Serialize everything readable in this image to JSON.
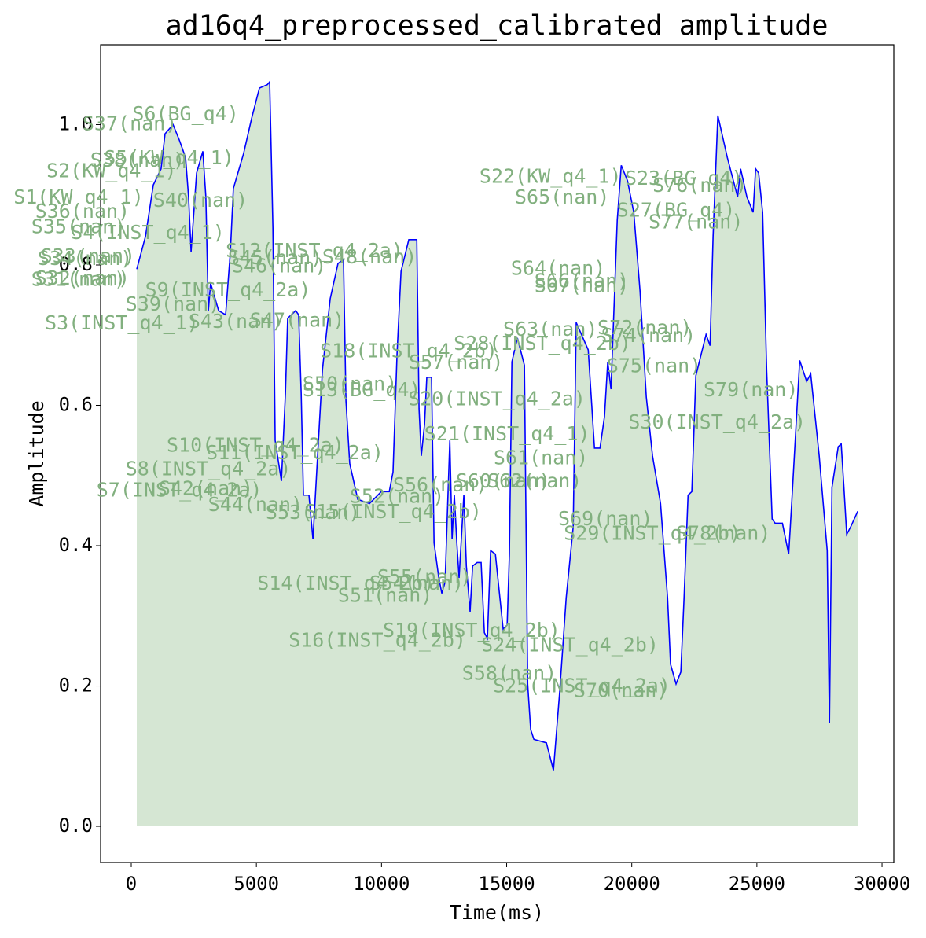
{
  "chart_data": {
    "type": "line",
    "title": "ad16q4_preprocessed_calibrated amplitude",
    "xlabel": "Time(ms)",
    "ylabel": "Amplitude",
    "xlim": [
      -1225,
      30470
    ],
    "ylim": [
      -0.0515,
      1.1137
    ],
    "xticks": [
      0,
      5000,
      10000,
      15000,
      20000,
      25000,
      30000
    ],
    "yticks": [
      {
        "value": 0,
        "label": "0.0"
      },
      {
        "value": 0.2,
        "label": "0.2"
      },
      {
        "value": 0.4,
        "label": "0.4"
      },
      {
        "value": 0.6,
        "label": "0.6"
      },
      {
        "value": 0.8,
        "label": "0.8"
      },
      {
        "value": 1,
        "label": "1.0"
      }
    ],
    "color": "#0000ff",
    "fill_color": "#d5e6d3",
    "x": [
      220,
      570,
      880,
      1190,
      1350,
      1670,
      1920,
      2170,
      2290,
      2390,
      2610,
      2860,
      2980,
      3080,
      3170,
      3490,
      3770,
      3960,
      4080,
      4490,
      4810,
      5120,
      5440,
      5530,
      5660,
      5750,
      6000,
      6160,
      6250,
      6570,
      6690,
      6790,
      6880,
      7100,
      7260,
      7480,
      7640,
      7950,
      8260,
      8480,
      8580,
      8730,
      9050,
      9520,
      9990,
      10310,
      10460,
      10620,
      10780,
      11090,
      11410,
      11500,
      11590,
      11720,
      11810,
      12000,
      12100,
      12290,
      12410,
      12540,
      12630,
      12730,
      12820,
      12910,
      13010,
      13100,
      13290,
      13390,
      13540,
      13640,
      13820,
      13980,
      14110,
      14230,
      14360,
      14550,
      14860,
      15020,
      15110,
      15210,
      15430,
      15710,
      15840,
      15960,
      16090,
      16590,
      16870,
      17120,
      17380,
      17660,
      17780,
      18260,
      18510,
      18730,
      18910,
      19040,
      19170,
      19420,
      19580,
      19830,
      20080,
      20330,
      20580,
      20830,
      21150,
      21430,
      21550,
      21770,
      21960,
      22090,
      22250,
      22400,
      22560,
      22970,
      23130,
      23250,
      23440,
      23820,
      24230,
      24350,
      24600,
      24850,
      24950,
      25070,
      25230,
      25390,
      25610,
      25730,
      26020,
      26270,
      26390,
      26710,
      26990,
      27150,
      27490,
      27810,
      27900,
      28000,
      28250,
      28370,
      28470,
      28590,
      28750,
      29030
    ],
    "values": [
      0.794,
      0.841,
      0.914,
      0.937,
      0.987,
      1.0,
      0.978,
      0.953,
      0.897,
      0.819,
      0.931,
      0.962,
      0.897,
      0.735,
      0.774,
      0.735,
      0.729,
      0.819,
      0.909,
      0.959,
      1.009,
      1.052,
      1.057,
      1.061,
      0.853,
      0.55,
      0.492,
      0.617,
      0.724,
      0.735,
      0.729,
      0.617,
      0.472,
      0.472,
      0.409,
      0.55,
      0.651,
      0.752,
      0.802,
      0.808,
      0.606,
      0.517,
      0.466,
      0.46,
      0.477,
      0.477,
      0.505,
      0.673,
      0.791,
      0.836,
      0.836,
      0.595,
      0.528,
      0.573,
      0.64,
      0.64,
      0.404,
      0.354,
      0.332,
      0.348,
      0.444,
      0.55,
      0.41,
      0.472,
      0.404,
      0.354,
      0.472,
      0.371,
      0.306,
      0.371,
      0.376,
      0.376,
      0.276,
      0.268,
      0.393,
      0.388,
      0.281,
      0.287,
      0.388,
      0.662,
      0.696,
      0.657,
      0.203,
      0.138,
      0.124,
      0.119,
      0.08,
      0.192,
      0.326,
      0.427,
      0.718,
      0.679,
      0.539,
      0.539,
      0.584,
      0.662,
      0.623,
      0.864,
      0.942,
      0.92,
      0.875,
      0.763,
      0.612,
      0.528,
      0.46,
      0.326,
      0.231,
      0.203,
      0.22,
      0.326,
      0.472,
      0.477,
      0.642,
      0.701,
      0.685,
      0.841,
      1.013,
      0.953,
      0.897,
      0.937,
      0.897,
      0.875,
      0.937,
      0.931,
      0.875,
      0.651,
      0.438,
      0.432,
      0.432,
      0.388,
      0.46,
      0.664,
      0.634,
      0.645,
      0.528,
      0.393,
      0.147,
      0.483,
      0.541,
      0.545,
      0.488,
      0.416,
      0.427,
      0.449
    ],
    "annotations": [
      {
        "text": "S37(nan)",
        "x": -60,
        "y": 1.0
      },
      {
        "text": "S6(BG_q4)",
        "x": 2170,
        "y": 1.014
      },
      {
        "text": "S5(KW_q4_1)",
        "x": 1510,
        "y": 0.951
      },
      {
        "text": "S38(nan)",
        "x": 250,
        "y": 0.948
      },
      {
        "text": "S2(KW_q4_1)",
        "x": -790,
        "y": 0.933
      },
      {
        "text": "S1(KW_q4_1)",
        "x": -2105,
        "y": 0.895
      },
      {
        "text": "S40(nan)",
        "x": 2765,
        "y": 0.891
      },
      {
        "text": "S36(nan)",
        "x": -1950,
        "y": 0.875
      },
      {
        "text": "S35(nan)",
        "x": -2105,
        "y": 0.853
      },
      {
        "text": "S4(INST_q4_1)",
        "x": 660,
        "y": 0.845
      },
      {
        "text": "S33(nan)",
        "x": -1730,
        "y": 0.811
      },
      {
        "text": "S34(nan)",
        "x": -1850,
        "y": 0.808
      },
      {
        "text": "S31(nan)",
        "x": -2105,
        "y": 0.778
      },
      {
        "text": "S32(nan)",
        "x": -1950,
        "y": 0.78
      },
      {
        "text": "S12(INST_q4_2a)",
        "x": 7320,
        "y": 0.819
      },
      {
        "text": "S46(nan)",
        "x": 5910,
        "y": 0.797
      },
      {
        "text": "S45(nan)",
        "x": 5750,
        "y": 0.809
      },
      {
        "text": "S48(nan)",
        "x": 9520,
        "y": 0.81
      },
      {
        "text": "S9(INST_q4_2a)",
        "x": 3865,
        "y": 0.763
      },
      {
        "text": "S39(nan)",
        "x": 1665,
        "y": 0.743
      },
      {
        "text": "S3(INST_q4_1)",
        "x": -380,
        "y": 0.716
      },
      {
        "text": "S43(nan)",
        "x": 4180,
        "y": 0.718
      },
      {
        "text": "S47(nan)",
        "x": 6630,
        "y": 0.72
      },
      {
        "text": "S18(INST_q4_2b)",
        "x": 11090,
        "y": 0.676
      },
      {
        "text": "S57(nan)",
        "x": 12980,
        "y": 0.66
      },
      {
        "text": "S28(INST_q4_2b)",
        "x": 16430,
        "y": 0.687
      },
      {
        "text": "S63(nan)",
        "x": 16750,
        "y": 0.707
      },
      {
        "text": "S64(nan)",
        "x": 17060,
        "y": 0.794
      },
      {
        "text": "S66(nan)",
        "x": 18000,
        "y": 0.776
      },
      {
        "text": "S67(nan)",
        "x": 18000,
        "y": 0.769
      },
      {
        "text": "S22(KW_q4_1)",
        "x": 16750,
        "y": 0.925
      },
      {
        "text": "S65(nan)",
        "x": 17220,
        "y": 0.895
      },
      {
        "text": "S23(BG_q4)",
        "x": 22090,
        "y": 0.922
      },
      {
        "text": "S76(nan)",
        "x": 22720,
        "y": 0.912
      },
      {
        "text": "S27(BG_q4)",
        "x": 21770,
        "y": 0.877
      },
      {
        "text": "S77(nan)",
        "x": 22560,
        "y": 0.86
      },
      {
        "text": "S72(nan)",
        "x": 20520,
        "y": 0.709
      },
      {
        "text": "S74(nan)",
        "x": 20670,
        "y": 0.698
      },
      {
        "text": "S75(nan)",
        "x": 20890,
        "y": 0.655
      },
      {
        "text": "S79(nan)",
        "x": 24760,
        "y": 0.621
      },
      {
        "text": "S30(INST_q4_2a)",
        "x": 23410,
        "y": 0.575
      },
      {
        "text": "S13(BG_q4)",
        "x": 9210,
        "y": 0.621
      },
      {
        "text": "S50(nan)",
        "x": 8735,
        "y": 0.629
      },
      {
        "text": "S20(INST_q4_2a)",
        "x": 14610,
        "y": 0.608
      },
      {
        "text": "S21(INST_q4_1)",
        "x": 15020,
        "y": 0.558
      },
      {
        "text": "S61(nan)",
        "x": 16370,
        "y": 0.524
      },
      {
        "text": "S10(INST_q4_2a)",
        "x": 4960,
        "y": 0.542
      },
      {
        "text": "S11(INST_q4_2a)",
        "x": 6535,
        "y": 0.531
      },
      {
        "text": "S8(INST_q4_2a)",
        "x": 3080,
        "y": 0.508
      },
      {
        "text": "S7(INST_q4_2a)",
        "x": 1920,
        "y": 0.478
      },
      {
        "text": "S42(nan)",
        "x": 2985,
        "y": 0.48
      },
      {
        "text": "S44(nan)",
        "x": 4960,
        "y": 0.457
      },
      {
        "text": "S53(nan)",
        "x": 7260,
        "y": 0.446
      },
      {
        "text": "S15(INST_q4_2b)",
        "x": 10460,
        "y": 0.447
      },
      {
        "text": "S52(nan)",
        "x": 10620,
        "y": 0.469
      },
      {
        "text": "S56(nan)",
        "x": 12350,
        "y": 0.485
      },
      {
        "text": "S60(nan)",
        "x": 14860,
        "y": 0.491
      },
      {
        "text": "S62(nan)",
        "x": 16120,
        "y": 0.491
      },
      {
        "text": "S69(nan)",
        "x": 18950,
        "y": 0.437
      },
      {
        "text": "S29(INST_q4_2b)",
        "x": 20830,
        "y": 0.416
      },
      {
        "text": "S78(nan)",
        "x": 23660,
        "y": 0.416
      },
      {
        "text": "S14(INST_q4_2b)",
        "x": 8580,
        "y": 0.345
      },
      {
        "text": "S55(nan)",
        "x": 11720,
        "y": 0.354
      },
      {
        "text": "S54(nan)",
        "x": 11400,
        "y": 0.345
      },
      {
        "text": "S51(nan)",
        "x": 10150,
        "y": 0.328
      },
      {
        "text": "S16(INST_q4_2b)",
        "x": 9835,
        "y": 0.264
      },
      {
        "text": "S19(INST_q4_2b)",
        "x": 13600,
        "y": 0.278
      },
      {
        "text": "S24(INST_q4_2b)",
        "x": 17530,
        "y": 0.257
      },
      {
        "text": "S58(nan)",
        "x": 15110,
        "y": 0.217
      },
      {
        "text": "S25(INST_q4_2a)",
        "x": 18000,
        "y": 0.199
      },
      {
        "text": "S70(nan)",
        "x": 19575,
        "y": 0.192
      }
    ]
  }
}
